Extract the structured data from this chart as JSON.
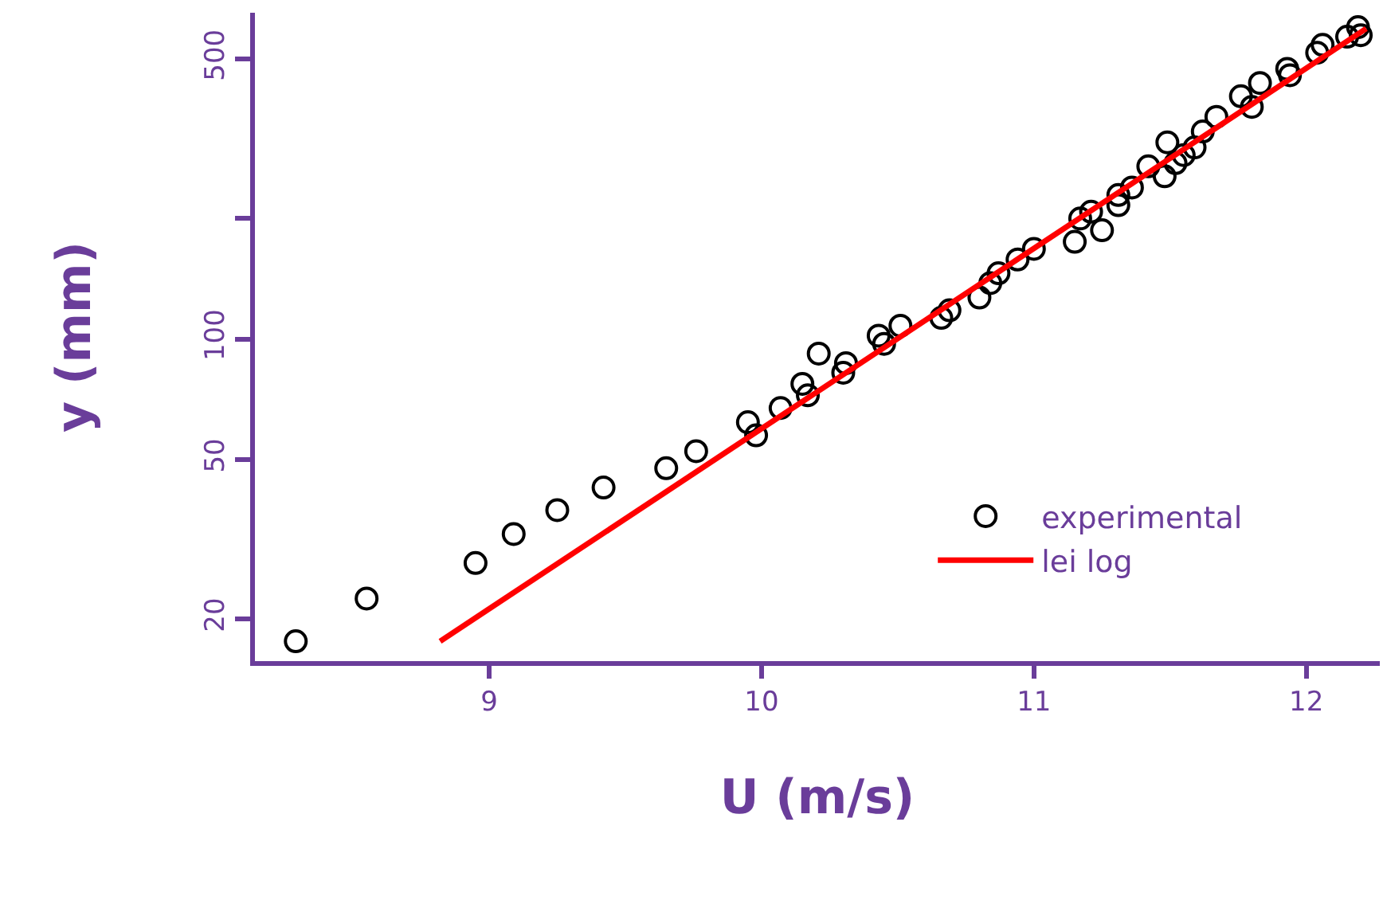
{
  "chart_data": {
    "type": "scatter",
    "xlabel": "U (m/s)",
    "ylabel": "y (mm)",
    "log": "y",
    "xlim": [
      8.14,
      12.27
    ],
    "ylim": [
      15.7,
      653
    ],
    "xticks": [
      9,
      10,
      11,
      12
    ],
    "yticks": [
      20,
      50,
      100,
      {
        "value": 200,
        "label": null
      },
      500
    ],
    "grid": false,
    "legend": "bottom right",
    "line_style": "solid",
    "series": [
      {
        "name": "experimental",
        "marker": "circle",
        "color": "#000000",
        "x": [
          8.29,
          8.55,
          8.95,
          9.09,
          9.25,
          9.42,
          9.65,
          9.76,
          9.95,
          9.98,
          10.07,
          10.15,
          10.17,
          10.21,
          10.3,
          10.31,
          10.43,
          10.45,
          10.51,
          10.66,
          10.69,
          10.8,
          10.84,
          10.87,
          10.94,
          11.0,
          11.15,
          11.17,
          11.21,
          11.25,
          11.31,
          11.31,
          11.36,
          11.42,
          11.48,
          11.49,
          11.52,
          11.55,
          11.59,
          11.62,
          11.67,
          11.76,
          11.8,
          11.83,
          11.93,
          11.94,
          12.04,
          12.06,
          12.15,
          12.19,
          12.2
        ],
        "values": [
          17.6,
          22.5,
          27.6,
          32.6,
          37.4,
          42.6,
          47.6,
          52.5,
          62,
          57.5,
          67.3,
          77.3,
          72.4,
          92,
          82.4,
          87.1,
          102,
          97.3,
          108,
          113,
          118,
          127,
          138,
          146,
          158,
          168,
          175,
          200,
          208,
          187,
          229,
          216,
          239,
          270,
          255,
          310,
          275,
          288,
          301,
          330,
          359,
          404,
          380,
          436,
          473,
          456,
          519,
          543,
          569,
          601,
          574
        ]
      },
      {
        "name": "lei log",
        "type": "line",
        "marker": "none",
        "color": "#ff0000",
        "x": [
          8.82,
          12.22
        ],
        "values": [
          17.6,
          596
        ]
      }
    ]
  }
}
